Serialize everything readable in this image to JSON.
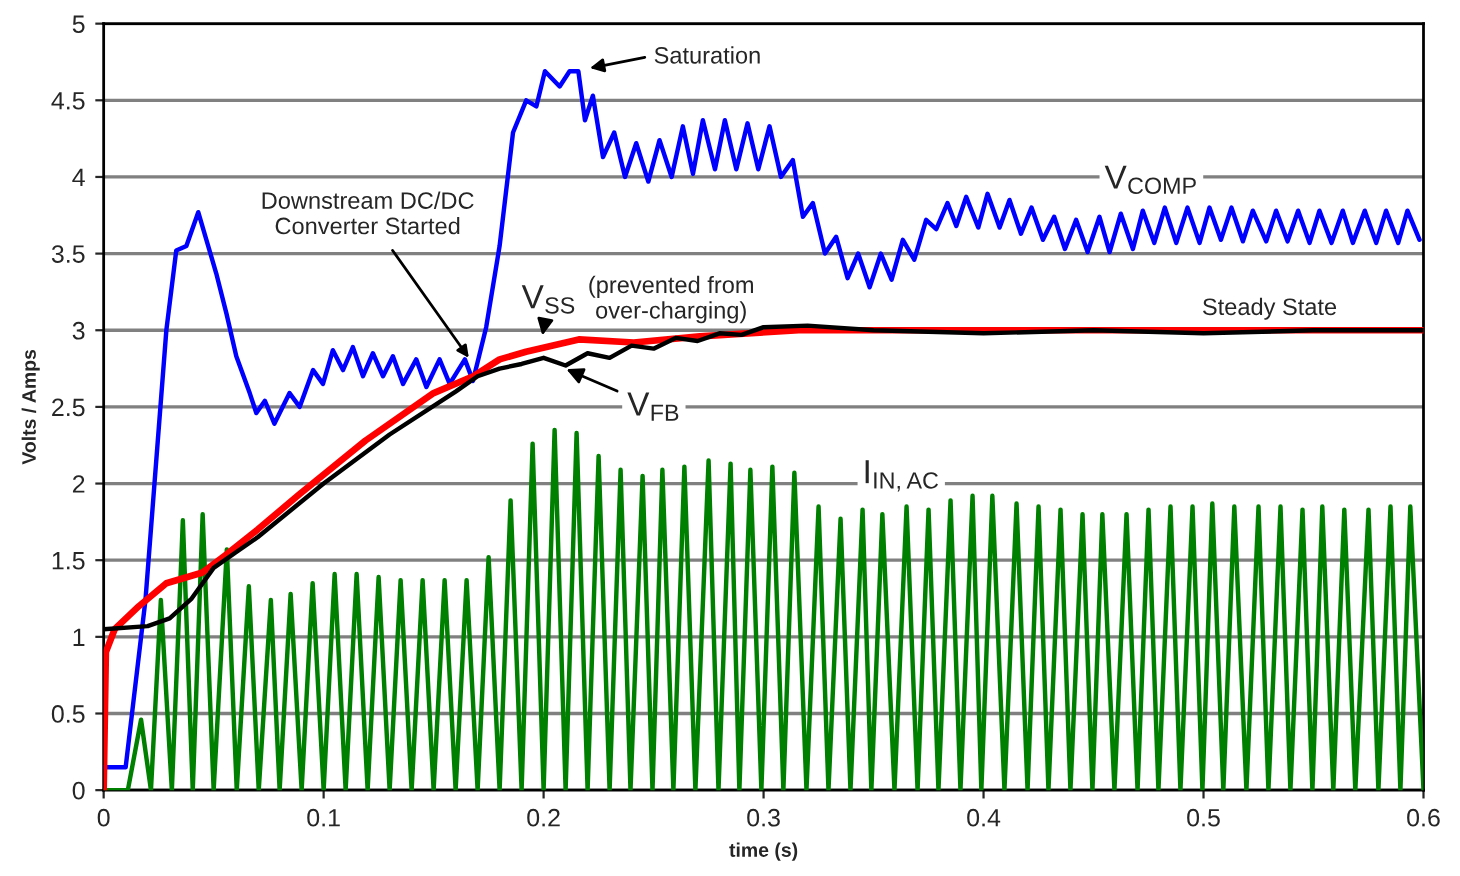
{
  "chart_data": {
    "type": "line",
    "xlabel": "time (s)",
    "ylabel": "Volts / Amps",
    "xlim": [
      0,
      0.6
    ],
    "xticks": [
      0,
      0.1,
      0.2,
      0.3,
      0.4,
      0.5,
      0.6
    ],
    "ylim": [
      0,
      5
    ],
    "yticks": [
      0,
      0.5,
      1,
      1.5,
      2,
      2.5,
      3,
      3.5,
      4,
      4.5,
      5
    ],
    "grid": "y",
    "legend": false,
    "line_style": "solid",
    "marker": "none",
    "series": [
      {
        "name": "I$_{IN,AC}$",
        "color": "#008000",
        "x": [
          0,
          0.011,
          0.017,
          0.0215,
          0.026,
          0.031,
          0.036,
          0.0405,
          0.045,
          0.05,
          0.056,
          0.0605,
          0.066,
          0.0705,
          0.076,
          0.08,
          0.085,
          0.09,
          0.095,
          0.1,
          0.105,
          0.11,
          0.115,
          0.12,
          0.125,
          0.13,
          0.135,
          0.14,
          0.145,
          0.15,
          0.155,
          0.16,
          0.165,
          0.17,
          0.175,
          0.18,
          0.185,
          0.19,
          0.195,
          0.2,
          0.205,
          0.21,
          0.215,
          0.22,
          0.225,
          0.23,
          0.235,
          0.2395,
          0.245,
          0.2495,
          0.254,
          0.259,
          0.264,
          0.269,
          0.275,
          0.2795,
          0.285,
          0.289,
          0.294,
          0.299,
          0.304,
          0.309,
          0.314,
          0.3195,
          0.325,
          0.3295,
          0.335,
          0.3395,
          0.345,
          0.349,
          0.354,
          0.3595,
          0.365,
          0.37,
          0.375,
          0.3795,
          0.385,
          0.3895,
          0.395,
          0.399,
          0.404,
          0.4095,
          0.415,
          0.42,
          0.425,
          0.4295,
          0.435,
          0.4395,
          0.445,
          0.4495,
          0.454,
          0.4595,
          0.465,
          0.47,
          0.475,
          0.4795,
          0.485,
          0.4895,
          0.495,
          0.4995,
          0.504,
          0.509,
          0.514,
          0.5195,
          0.525,
          0.5295,
          0.535,
          0.5395,
          0.545,
          0.5495,
          0.554,
          0.559,
          0.564,
          0.569,
          0.575,
          0.5795,
          0.585,
          0.5895,
          0.594,
          0.6
        ],
        "values": [
          0,
          0,
          0.46,
          0,
          1.24,
          0,
          1.76,
          0,
          1.8,
          0,
          1.57,
          0,
          1.33,
          0,
          1.24,
          0,
          1.28,
          0,
          1.35,
          0,
          1.41,
          0,
          1.41,
          0,
          1.39,
          0,
          1.37,
          0,
          1.37,
          0,
          1.37,
          0,
          1.37,
          0,
          1.52,
          0,
          1.89,
          0,
          2.26,
          0,
          2.35,
          0,
          2.33,
          0,
          2.18,
          0,
          2.09,
          0,
          2.05,
          0,
          2.09,
          0,
          2.11,
          0,
          2.15,
          0,
          2.13,
          0,
          2.09,
          0,
          2.11,
          0,
          2.07,
          0,
          1.85,
          0,
          1.77,
          0,
          1.83,
          0,
          1.8,
          0,
          1.85,
          0,
          1.83,
          0,
          1.89,
          0,
          1.92,
          0,
          1.92,
          0,
          1.87,
          0,
          1.85,
          0,
          1.83,
          0,
          1.8,
          0,
          1.8,
          0,
          1.8,
          0,
          1.83,
          0,
          1.85,
          0,
          1.85,
          0,
          1.87,
          0,
          1.85,
          0,
          1.85,
          0,
          1.85,
          0,
          1.83,
          0,
          1.85,
          0,
          1.83,
          0,
          1.83,
          0,
          1.85,
          0,
          1.85,
          0
        ]
      },
      {
        "name": "V$_{COMP}$",
        "color": "#0000ff",
        "x": [
          0,
          0.01,
          0.019,
          0.0285,
          0.033,
          0.0376,
          0.043,
          0.0467,
          0.0512,
          0.0558,
          0.0603,
          0.0664,
          0.0694,
          0.0733,
          0.0776,
          0.0845,
          0.0891,
          0.0952,
          0.0997,
          0.1042,
          0.1088,
          0.1133,
          0.1179,
          0.1224,
          0.127,
          0.1315,
          0.1361,
          0.1421,
          0.1467,
          0.1527,
          0.1573,
          0.1642,
          0.1679,
          0.1739,
          0.18,
          0.1861,
          0.1921,
          0.1967,
          0.2006,
          0.2073,
          0.2118,
          0.2158,
          0.2188,
          0.2224,
          0.227,
          0.2321,
          0.237,
          0.2421,
          0.2476,
          0.2527,
          0.2582,
          0.2633,
          0.2679,
          0.2724,
          0.2779,
          0.2824,
          0.2876,
          0.2927,
          0.2976,
          0.3027,
          0.3079,
          0.3133,
          0.3179,
          0.3224,
          0.3279,
          0.333,
          0.3382,
          0.343,
          0.3482,
          0.3533,
          0.3582,
          0.3633,
          0.3685,
          0.3739,
          0.3785,
          0.3836,
          0.3876,
          0.3921,
          0.3976,
          0.4018,
          0.4073,
          0.4118,
          0.417,
          0.4218,
          0.427,
          0.4321,
          0.437,
          0.4421,
          0.4473,
          0.4527,
          0.4573,
          0.4624,
          0.4679,
          0.4724,
          0.4776,
          0.4824,
          0.4876,
          0.4927,
          0.4982,
          0.5027,
          0.5079,
          0.5127,
          0.5179,
          0.5224,
          0.5285,
          0.533,
          0.5382,
          0.543,
          0.5482,
          0.5527,
          0.5582,
          0.5633,
          0.5679,
          0.5733,
          0.5785,
          0.583,
          0.5885,
          0.5927,
          0.5982
        ],
        "values": [
          0.15,
          0.15,
          1.24,
          3.0,
          3.52,
          3.55,
          3.77,
          3.59,
          3.37,
          3.11,
          2.83,
          2.59,
          2.46,
          2.54,
          2.39,
          2.59,
          2.5,
          2.74,
          2.65,
          2.87,
          2.74,
          2.89,
          2.7,
          2.85,
          2.7,
          2.83,
          2.65,
          2.81,
          2.63,
          2.81,
          2.65,
          2.81,
          2.67,
          3.02,
          3.55,
          4.29,
          4.5,
          4.46,
          4.69,
          4.59,
          4.69,
          4.69,
          4.37,
          4.53,
          4.13,
          4.29,
          4.0,
          4.22,
          3.97,
          4.24,
          4.0,
          4.33,
          4.02,
          4.37,
          4.05,
          4.37,
          4.05,
          4.35,
          4.05,
          4.33,
          4.0,
          4.11,
          3.74,
          3.83,
          3.5,
          3.61,
          3.34,
          3.5,
          3.28,
          3.5,
          3.33,
          3.59,
          3.46,
          3.72,
          3.66,
          3.83,
          3.68,
          3.87,
          3.67,
          3.89,
          3.67,
          3.85,
          3.63,
          3.8,
          3.59,
          3.74,
          3.53,
          3.72,
          3.51,
          3.74,
          3.51,
          3.76,
          3.53,
          3.78,
          3.57,
          3.8,
          3.57,
          3.8,
          3.57,
          3.8,
          3.59,
          3.8,
          3.58,
          3.78,
          3.58,
          3.78,
          3.58,
          3.78,
          3.57,
          3.78,
          3.57,
          3.78,
          3.57,
          3.78,
          3.57,
          3.78,
          3.57,
          3.78,
          3.59
        ]
      },
      {
        "name": "V$_{SS}$",
        "color": "#ff0000",
        "x": [
          0,
          0.001,
          0.005,
          0.016,
          0.0285,
          0.045,
          0.056,
          0.07,
          0.089,
          0.119,
          0.15,
          0.168,
          0.18,
          0.192,
          0.216,
          0.241,
          0.271,
          0.316,
          0.407,
          0.6
        ],
        "values": [
          0,
          0.9,
          1.05,
          1.2,
          1.35,
          1.42,
          1.54,
          1.7,
          1.93,
          2.28,
          2.59,
          2.7,
          2.81,
          2.86,
          2.94,
          2.92,
          2.96,
          3.0,
          3.0,
          3.0
        ]
      },
      {
        "name": "V$_{FB}$",
        "color": "#000000",
        "x": [
          0,
          0.02,
          0.03,
          0.04,
          0.05,
          0.06,
          0.07,
          0.1,
          0.13,
          0.16,
          0.17,
          0.18,
          0.19,
          0.2,
          0.21,
          0.22,
          0.23,
          0.24,
          0.25,
          0.26,
          0.27,
          0.28,
          0.29,
          0.3,
          0.32,
          0.35,
          0.4,
          0.45,
          0.5,
          0.55,
          0.6
        ],
        "values": [
          1.05,
          1.07,
          1.12,
          1.25,
          1.45,
          1.55,
          1.65,
          2.0,
          2.32,
          2.6,
          2.7,
          2.75,
          2.78,
          2.82,
          2.77,
          2.85,
          2.82,
          2.9,
          2.88,
          2.95,
          2.93,
          2.98,
          2.97,
          3.02,
          3.03,
          3.0,
          2.98,
          3.0,
          2.98,
          3.0,
          3.0
        ]
      }
    ],
    "annotations": [
      "Saturation",
      {
        "text": "Downstream DC/DC\nConverter Started",
        "x": 0.166,
        "y": 2.82
      },
      "(prevented from\nover-charging)",
      "Steady State"
    ]
  }
}
